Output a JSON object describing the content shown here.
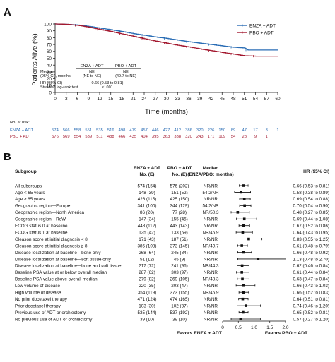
{
  "panel_a_label": "A",
  "panel_b_label": "B",
  "colors": {
    "enza": "#2a6db5",
    "pbo": "#a3182f",
    "ci_line": "#111111",
    "text": "#111111"
  },
  "chart_data": [
    {
      "type": "line",
      "title": "",
      "xlabel": "Time (months)",
      "ylabel": "Patients Alive (%)",
      "xlim": [
        0,
        60
      ],
      "ylim": [
        0,
        100
      ],
      "x_ticks": [
        0,
        3,
        6,
        9,
        12,
        15,
        18,
        21,
        24,
        27,
        30,
        33,
        36,
        39,
        42,
        45,
        48,
        51,
        54,
        57,
        60
      ],
      "y_ticks": [
        0,
        10,
        20,
        30,
        40,
        50,
        60,
        70,
        80,
        90,
        100
      ],
      "grid": false,
      "legend_position": "top-right",
      "series": [
        {
          "name": "ENZA + ADT",
          "x": [
            0,
            3,
            6,
            9,
            12,
            15,
            18,
            21,
            24,
            27,
            30,
            33,
            36,
            39,
            42,
            45,
            48,
            51,
            52,
            60
          ],
          "y": [
            100,
            99.5,
            98.5,
            96.5,
            94,
            91.5,
            89,
            86,
            83.5,
            81,
            79,
            76.5,
            74,
            72,
            70,
            68,
            66,
            65,
            62,
            62
          ]
        },
        {
          "name": "PBO + ADT",
          "x": [
            0,
            3,
            6,
            9,
            12,
            15,
            18,
            21,
            24,
            27,
            30,
            33,
            36,
            39,
            42,
            45,
            48,
            51,
            54,
            60
          ],
          "y": [
            100,
            99.5,
            98,
            95.5,
            92,
            89,
            85.5,
            82,
            78.5,
            75,
            72,
            69,
            66.5,
            63.5,
            61,
            58.5,
            56,
            53.5,
            53,
            53
          ]
        }
      ],
      "inset_table": {
        "header": [
          "ENZA + ADT",
          "PBO + ADT"
        ],
        "rows": [
          {
            "label": "Median",
            "values": [
              "NE",
              "NE"
            ]
          },
          {
            "label": "(95% CI), months",
            "values": [
              "(NE to NE)",
              "(49.7 to NE)"
            ]
          },
          {
            "label": "HR (95% CI)",
            "values": [
              "0.66 (0.53 to 0.81)",
              ""
            ]
          },
          {
            "label": "Stratified log-rank test",
            "values": [
              "< .001",
              ""
            ]
          }
        ]
      },
      "at_risk": {
        "title": "No. at risk:",
        "rows": [
          {
            "label": "ENZA + ADT",
            "values": [
              "574",
              "566",
              "558",
              "551",
              "535",
              "516",
              "498",
              "479",
              "457",
              "446",
              "427",
              "412",
              "386",
              "320",
              "226",
              "150",
              "89",
              "47",
              "17",
              "3",
              "1"
            ]
          },
          {
            "label": "PBO + ADT",
            "values": [
              "576",
              "569",
              "554",
              "539",
              "511",
              "488",
              "466",
              "435",
              "404",
              "395",
              "363",
              "338",
              "320",
              "243",
              "171",
              "109",
              "54",
              "28",
              "9",
              "1",
              ""
            ]
          }
        ]
      }
    },
    {
      "type": "table",
      "title": "",
      "xlabel_left": "Favors ENZA + ADT",
      "xlabel_right": "Favors PBO + ADT",
      "x_ticks": [
        "0",
        "0.5",
        "1.0",
        "1.5",
        "2.0"
      ],
      "xlim": [
        0,
        2
      ],
      "reference_line": 1,
      "headers": {
        "subgroup": "Subgroup",
        "enza_1": "ENZA + ADT",
        "enza_2": "No. (E)",
        "pbo_1": "PBO + ADT",
        "pbo_2": "No. (E)",
        "median_1": "Median",
        "median_2": "(ENZA/PBO; months)",
        "hr": "HR (95% CI)"
      },
      "rows": [
        {
          "subgroup": "All subgroups",
          "enza": "574 (154)",
          "pbo": "576 (202)",
          "median": "NR/NR",
          "hr": 0.66,
          "lo": 0.53,
          "hi": 0.81,
          "hr_text": "0.66 (0.53 to 0.81)"
        },
        {
          "subgroup": "Age < 65 years",
          "enza": "148 (39)",
          "pbo": "151 (52)",
          "median": "54.2/NR",
          "hr": 0.58,
          "lo": 0.38,
          "hi": 0.89,
          "hr_text": "0.58 (0.38 to 0.89)"
        },
        {
          "subgroup": "Age ≥ 65 years",
          "enza": "426 (115)",
          "pbo": "425 (150)",
          "median": "NR/NR",
          "hr": 0.69,
          "lo": 0.54,
          "hi": 0.88,
          "hr_text": "0.69 (0.54 to 0.88)"
        },
        {
          "subgroup": "Geographic region—Europe",
          "enza": "341 (100)",
          "pbo": "344 (129)",
          "median": "54.2/NR",
          "hr": 0.7,
          "lo": 0.54,
          "hi": 0.9,
          "hr_text": "0.70 (0.54 to 0.90)"
        },
        {
          "subgroup": "Geographic region—North America",
          "enza": "86 (20)",
          "pbo": "77 (28)",
          "median": "NR/50.3",
          "hr": 0.48,
          "lo": 0.27,
          "hi": 0.85,
          "hr_text": "0.48 (0.27 to 0.85)"
        },
        {
          "subgroup": "Geographic region—RoW",
          "enza": "147 (34)",
          "pbo": "155 (45)",
          "median": "NR/NR",
          "hr": 0.69,
          "lo": 0.44,
          "hi": 1.08,
          "hr_text": "0.69 (0.44 to 1.08)"
        },
        {
          "subgroup": "ECOG status 0 at baseline",
          "enza": "448 (112)",
          "pbo": "443 (143)",
          "median": "NR/NR",
          "hr": 0.67,
          "lo": 0.52,
          "hi": 0.86,
          "hr_text": "0.67 (0.52 to 0.86)"
        },
        {
          "subgroup": "ECOG status 1 at baseline",
          "enza": "125 (42)",
          "pbo": "133 (59)",
          "median": "NR/45.9",
          "hr": 0.64,
          "lo": 0.43,
          "hi": 0.95,
          "hr_text": "0.64 (0.43 to 0.95)"
        },
        {
          "subgroup": "Gleason score at initial diagnosis < 8",
          "enza": "171 (43)",
          "pbo": "187 (51)",
          "median": "NR/NR",
          "hr": 0.83,
          "lo": 0.55,
          "hi": 1.25,
          "hr_text": "0.83 (0.55 to 1.25)"
        },
        {
          "subgroup": "Gleason score at initial diagnosis ≥ 8",
          "enza": "386 (108)",
          "pbo": "373 (145)",
          "median": "NR/49.7",
          "hr": 0.61,
          "lo": 0.48,
          "hi": 0.79,
          "hr_text": "0.61 (0.48 to 0.79)"
        },
        {
          "subgroup": "Disease localization at baseline—bone only",
          "enza": "268 (64)",
          "pbo": "245 (84)",
          "median": "NR/NR",
          "hr": 0.66,
          "lo": 0.48,
          "hi": 0.92,
          "hr_text": "0.66 (0.48 to 0.92)"
        },
        {
          "subgroup": "Disease localization at baseline—soft tissue only",
          "enza": "51 (12)",
          "pbo": "45 (9)",
          "median": "NR/NR",
          "hr": 1.13,
          "lo": 0.48,
          "hi": 2.7,
          "hr_text": "1.13 (0.48 to 2.70)"
        },
        {
          "subgroup": "Disease localization at baseline—bone and soft tissue",
          "enza": "217 (72)",
          "pbo": "241 (96)",
          "median": "NR/44.3",
          "hr": 0.62,
          "lo": 0.46,
          "hi": 0.84,
          "hr_text": "0.62 (0.46 to 0.84)"
        },
        {
          "subgroup": "Baseline PSA value at or below overall median",
          "enza": "287 (62)",
          "pbo": "303 (97)",
          "median": "NR/NR",
          "hr": 0.61,
          "lo": 0.44,
          "hi": 0.84,
          "hr_text": "0.61 (0.44 to 0.84)"
        },
        {
          "subgroup": "Baseline PSA value above overall median",
          "enza": "279 (82)",
          "pbo": "269 (105)",
          "median": "NR/48.3",
          "hr": 0.63,
          "lo": 0.47,
          "hi": 0.84,
          "hr_text": "0.63 (0.47 to 0.84)"
        },
        {
          "subgroup": "Low volume of disease",
          "enza": "220 (35)",
          "pbo": "203 (47)",
          "median": "NR/NR",
          "hr": 0.66,
          "lo": 0.43,
          "hi": 1.03,
          "hr_text": "0.66 (0.43 to 1.03)"
        },
        {
          "subgroup": "High volume of disease",
          "enza": "354 (119)",
          "pbo": "373 (155)",
          "median": "NR/45.9",
          "hr": 0.66,
          "lo": 0.52,
          "hi": 0.83,
          "hr_text": "0.66 (0.52 to 0.83)"
        },
        {
          "subgroup": "No prior docetaxel therapy",
          "enza": "471 (124)",
          "pbo": "474 (165)",
          "median": "NR/NR",
          "hr": 0.64,
          "lo": 0.51,
          "hi": 0.81,
          "hr_text": "0.64 (0.51 to 0.81)"
        },
        {
          "subgroup": "Prior docetaxel therapy",
          "enza": "103 (30)",
          "pbo": "102 (37)",
          "median": "NR/NR",
          "hr": 0.74,
          "lo": 0.46,
          "hi": 1.2,
          "hr_text": "0.74 (0.46 to 1.20)"
        },
        {
          "subgroup": "Previous use of ADT or orchiectomy",
          "enza": "535 (144)",
          "pbo": "537 (192)",
          "median": "NR/NR",
          "hr": 0.65,
          "lo": 0.52,
          "hi": 0.81,
          "hr_text": "0.65 (0.52 to 0.81)"
        },
        {
          "subgroup": "No previous use of ADT or orchiectomy",
          "enza": "39 (10)",
          "pbo": "39 (10)",
          "median": "NR/NR",
          "hr": 0.57,
          "lo": 0.27,
          "hi": 1.2,
          "hr_text": "0.57 (0.27 to 1.20)"
        }
      ]
    }
  ]
}
